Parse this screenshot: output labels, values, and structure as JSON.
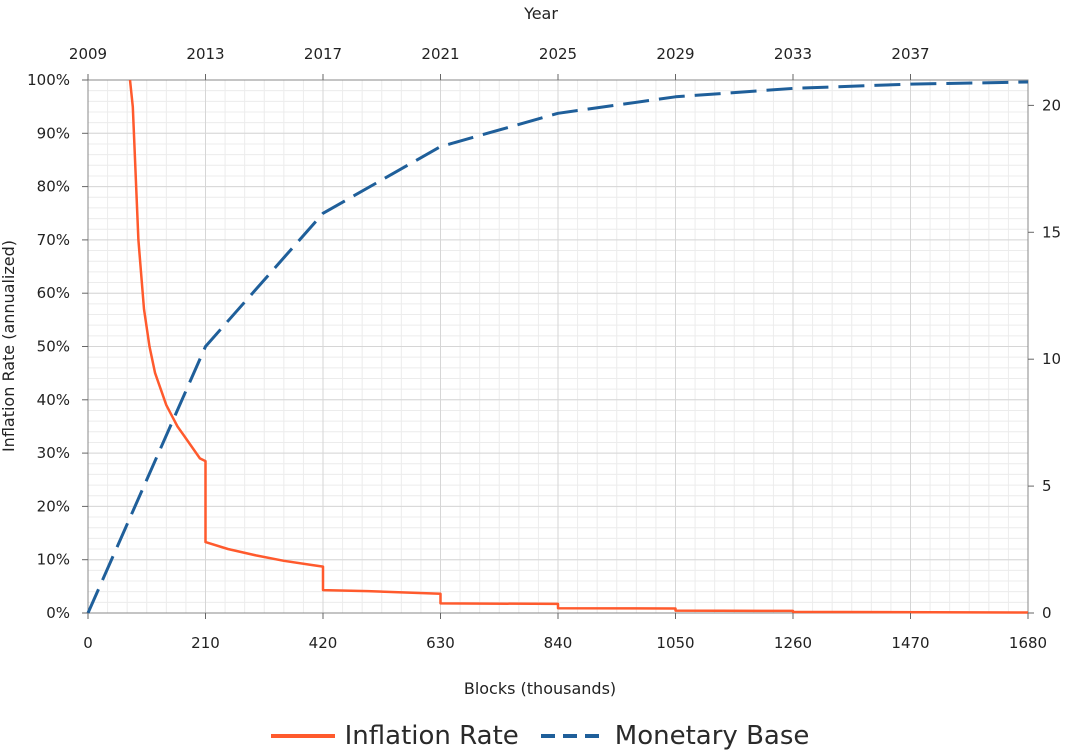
{
  "chart_data": {
    "type": "line",
    "xlabel": "Blocks (thousands)",
    "x2label": "Year",
    "ylabel": "Inflation Rate (annualized)",
    "y2label": "",
    "x_ticks": [
      "0",
      "210",
      "420",
      "630",
      "840",
      "1050",
      "1260",
      "1470",
      "1680"
    ],
    "x2_ticks": [
      "2009",
      "2013",
      "2017",
      "2021",
      "2025",
      "2029",
      "2033",
      "2037"
    ],
    "y_ticks": [
      "0%",
      "10%",
      "20%",
      "30%",
      "40%",
      "50%",
      "60%",
      "70%",
      "80%",
      "90%",
      "100%"
    ],
    "y2_ticks": [
      "0",
      "5",
      "10",
      "15",
      "20"
    ],
    "xlim": [
      0,
      1680
    ],
    "ylim": [
      0,
      100
    ],
    "y2lim": [
      0,
      21
    ],
    "grid": true,
    "legend_position": "bottom",
    "series": [
      {
        "name": "Inflation Rate",
        "axis": "left",
        "style": "solid",
        "color": "#ff5a2d",
        "x": [
          75,
          80,
          90,
          100,
          110,
          120,
          130,
          140,
          150,
          160,
          170,
          180,
          190,
          200,
          210,
          210,
          250,
          300,
          350,
          400,
          420,
          420,
          500,
          630,
          630,
          840,
          840,
          1050,
          1050,
          1260,
          1260,
          1680
        ],
        "y": [
          100,
          95,
          70,
          57,
          50,
          45,
          42,
          39,
          37,
          35,
          33.5,
          32,
          30.5,
          29,
          28.5,
          13.3,
          12,
          10.8,
          9.8,
          9,
          8.7,
          4.3,
          4.1,
          3.6,
          1.8,
          1.7,
          0.9,
          0.85,
          0.45,
          0.4,
          0.2,
          0.1
        ]
      },
      {
        "name": "Monetary Base",
        "axis": "right",
        "style": "dashed",
        "color": "#1f5f9a",
        "x": [
          0,
          210,
          420,
          630,
          840,
          1050,
          1260,
          1470,
          1680
        ],
        "y": [
          0,
          10.5,
          15.75,
          18.375,
          19.6875,
          20.34,
          20.67,
          20.84,
          20.92
        ]
      }
    ]
  }
}
